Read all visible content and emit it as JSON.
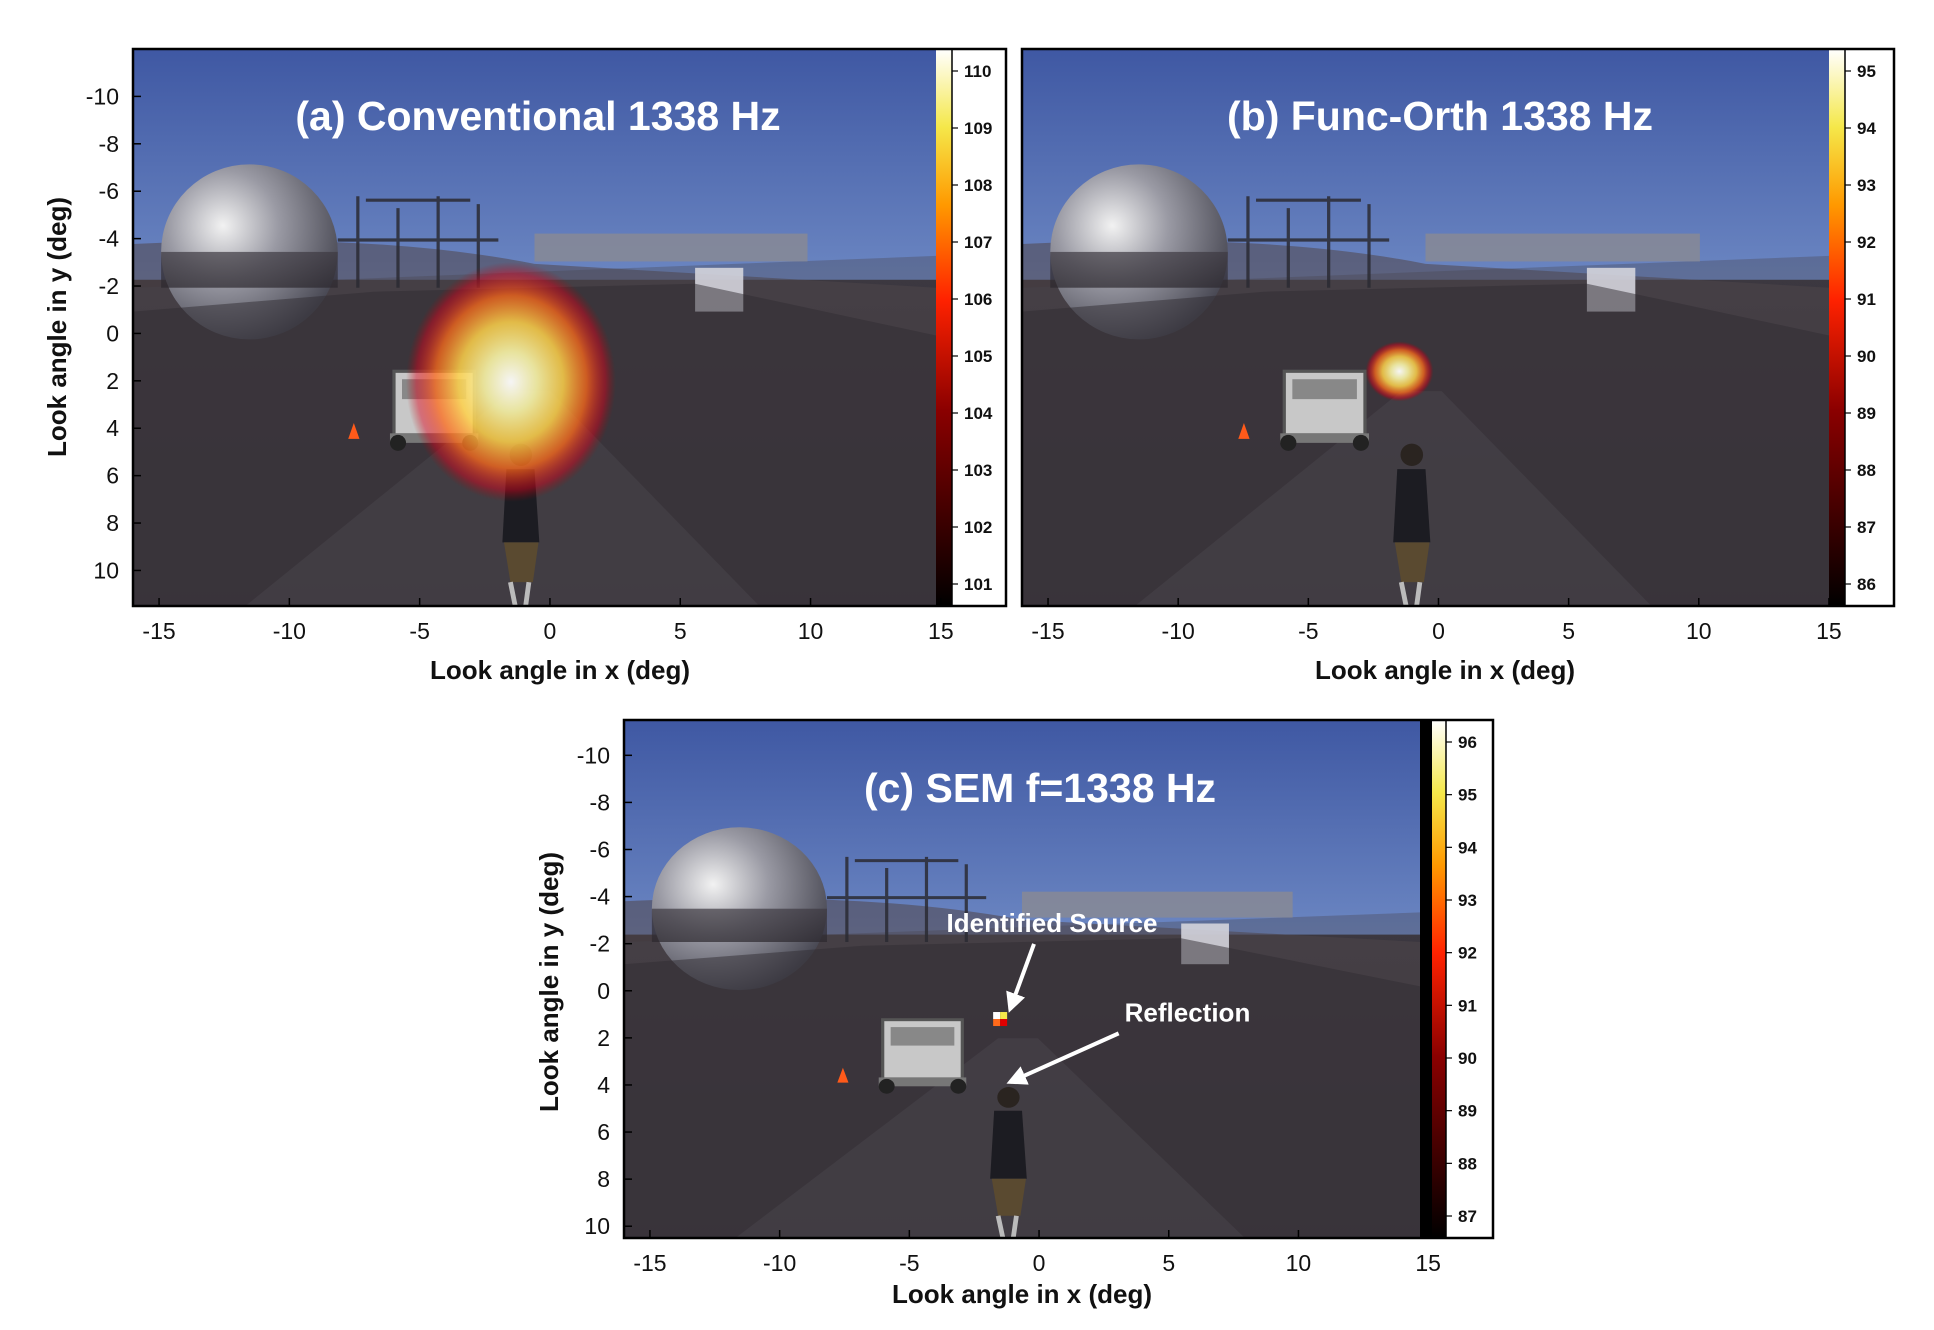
{
  "chart_data": [
    {
      "type": "heatmap",
      "title": "(a) Conventional 1338 Hz",
      "xlabel": "Look angle in x (deg)",
      "ylabel": "Look angle in y (deg)",
      "xlim": [
        -16,
        17.5
      ],
      "ylim": [
        -12,
        11.5
      ],
      "x_ticks": [
        -15,
        -10,
        -5,
        0,
        5,
        10,
        15
      ],
      "y_ticks": [
        -10,
        -8,
        -6,
        -4,
        -2,
        0,
        2,
        4,
        6,
        8,
        10
      ],
      "colorbar": {
        "min": 101,
        "max": 110,
        "ticks": [
          101,
          102,
          103,
          104,
          105,
          106,
          107,
          108,
          109,
          110
        ]
      },
      "hotspot": {
        "x": -1.5,
        "y": 1.2,
        "peak_level": 110
      },
      "annotations": []
    },
    {
      "type": "heatmap",
      "title": "(b) Func-Orth 1338 Hz",
      "xlabel": "Look angle in x (deg)",
      "ylabel": "",
      "xlim": [
        -16,
        17.5
      ],
      "ylim": [
        -12,
        11.5
      ],
      "x_ticks": [
        -15,
        -10,
        -5,
        0,
        5,
        10,
        15
      ],
      "y_ticks": [],
      "colorbar": {
        "min": 86,
        "max": 95,
        "ticks": [
          86,
          87,
          88,
          89,
          90,
          91,
          92,
          93,
          94,
          95
        ]
      },
      "hotspot": {
        "x": -1.5,
        "y": 1.6,
        "peak_level": 95
      },
      "annotations": []
    },
    {
      "type": "heatmap",
      "title": "(c) SEM f=1338 Hz",
      "xlabel": "Look angle in x (deg)",
      "ylabel": "Look angle in y (deg)",
      "xlim": [
        -16,
        17.5
      ],
      "ylim": [
        -11.5,
        10.5
      ],
      "x_ticks": [
        -15,
        -10,
        -5,
        0,
        5,
        10,
        15
      ],
      "y_ticks": [
        -10,
        -8,
        -6,
        -4,
        -2,
        0,
        2,
        4,
        6,
        8,
        10
      ],
      "colorbar": {
        "min": 87,
        "max": 96,
        "ticks": [
          87,
          88,
          89,
          90,
          91,
          92,
          93,
          94,
          95,
          96
        ]
      },
      "hotspot": {
        "x": -1.5,
        "y": 1.2,
        "peak_level": 96
      },
      "annotations": [
        {
          "text": "Identified Source",
          "x": -1.5,
          "y": 1.2,
          "text_x": 0.5,
          "text_y": -2.5
        },
        {
          "text": "Reflection",
          "x": -1.5,
          "y": 4.3,
          "text_x": 3.3,
          "text_y": 1.3
        }
      ]
    }
  ]
}
